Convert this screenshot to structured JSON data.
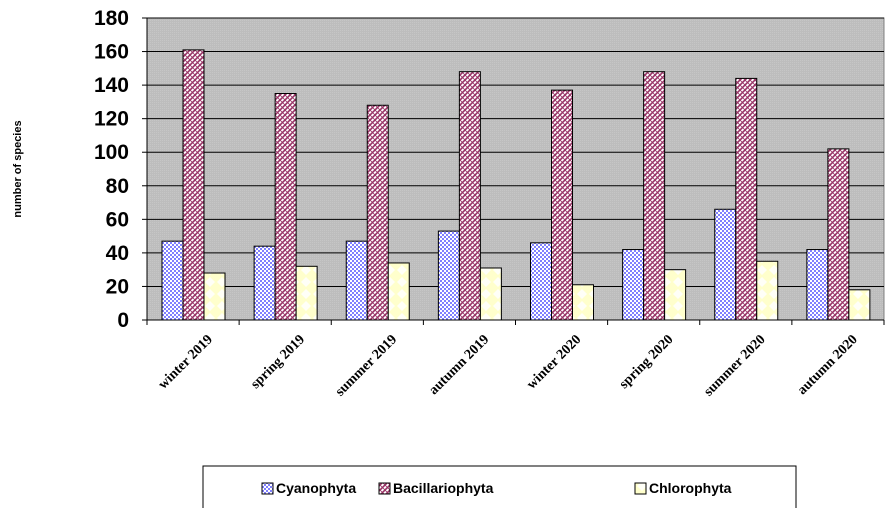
{
  "chart_data": {
    "type": "bar",
    "title": "",
    "xlabel": "",
    "ylabel": "number of species",
    "ylim": [
      0,
      180
    ],
    "yticks": [
      0,
      20,
      40,
      60,
      80,
      100,
      120,
      140,
      160,
      180
    ],
    "grid": true,
    "legend_position": "bottom",
    "categories": [
      "winter 2019",
      "spring 2019",
      "summer 2019",
      "autumn 2019",
      "winter 2020",
      "spring 2020",
      "summer 2020",
      "autumn 2020"
    ],
    "series": [
      {
        "name": "Cyanophyta",
        "values": [
          47,
          44,
          47,
          53,
          46,
          42,
          66,
          42
        ],
        "color": "#9999ff"
      },
      {
        "name": "Bacillariophyta",
        "values": [
          161,
          135,
          128,
          148,
          137,
          148,
          144,
          102
        ],
        "color": "#993366"
      },
      {
        "name": "Chlorophyta",
        "values": [
          28,
          32,
          34,
          31,
          21,
          30,
          35,
          18
        ],
        "color": "#ffffcc"
      }
    ],
    "plot_background": "#c0c0c0"
  }
}
